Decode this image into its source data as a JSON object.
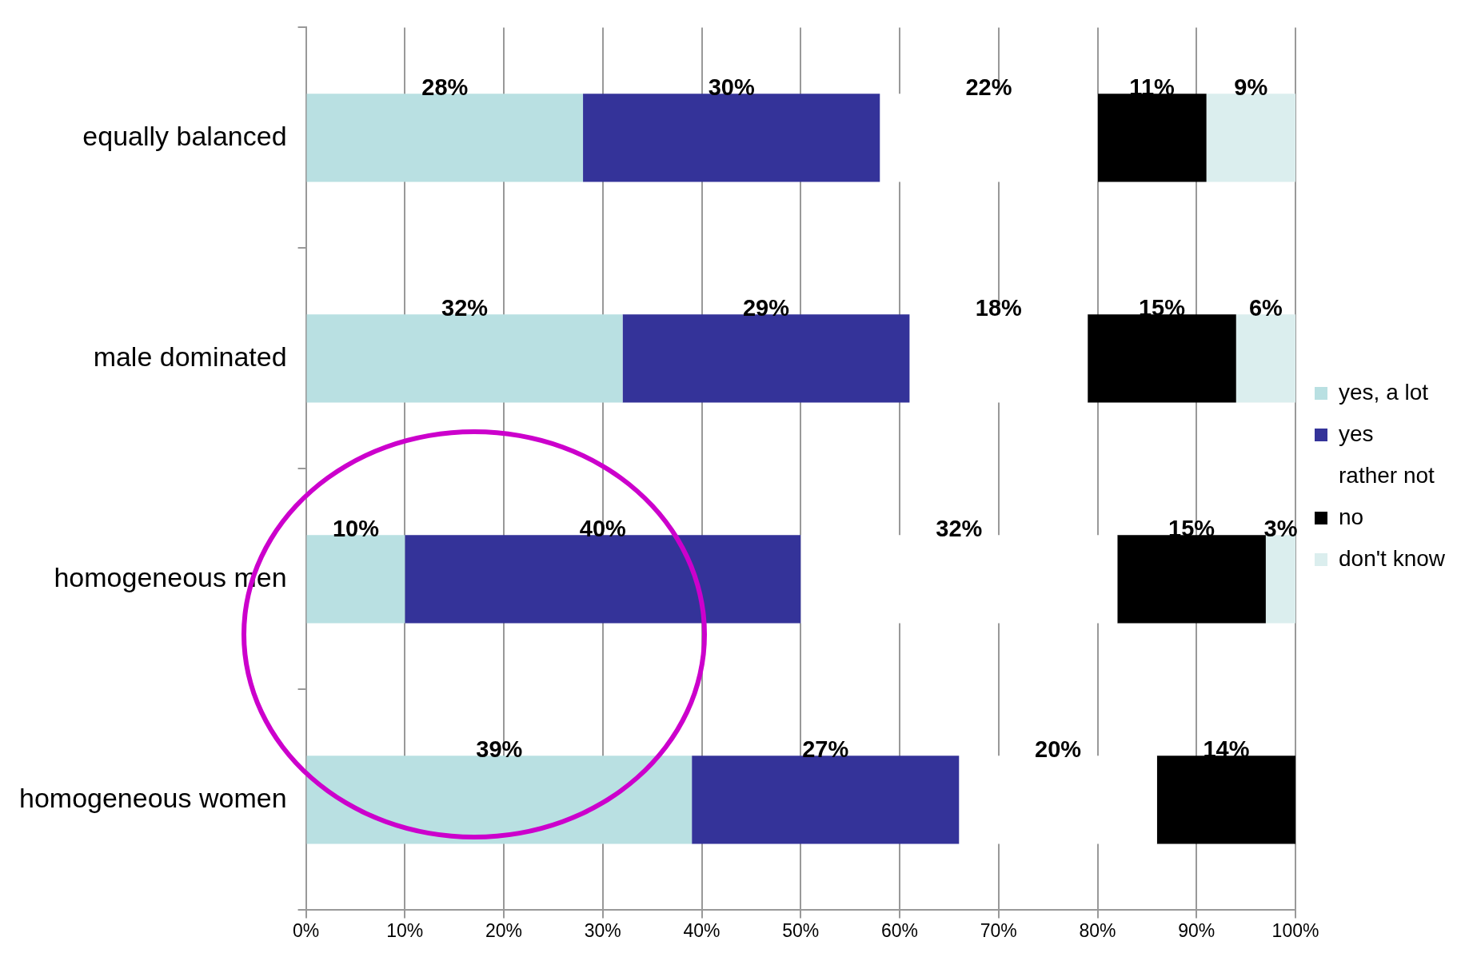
{
  "chart_data": {
    "type": "bar",
    "orientation": "horizontal",
    "stacked": true,
    "categories": [
      "equally balanced",
      "male dominated",
      "homogeneous men",
      "homogeneous women"
    ],
    "series": [
      {
        "name": "yes, a lot",
        "color": "#b9e0e2",
        "values": [
          28,
          32,
          10,
          39
        ],
        "value_labels": [
          "28%",
          "32%",
          "10%",
          "39%"
        ]
      },
      {
        "name": "yes",
        "color": "#343399",
        "values": [
          30,
          29,
          40,
          27
        ],
        "value_labels": [
          "30%",
          "29%",
          "40%",
          "27%"
        ]
      },
      {
        "name": "rather not",
        "color": "#ffffff",
        "values": [
          22,
          18,
          32,
          20
        ],
        "value_labels": [
          "22%",
          "18%",
          "32%",
          "20%"
        ]
      },
      {
        "name": "no",
        "color": "#000000",
        "values": [
          11,
          15,
          15,
          14
        ],
        "value_labels": [
          "11%",
          "15%",
          "15%",
          "14%"
        ]
      },
      {
        "name": "don't know",
        "color": "#dbeeee",
        "values": [
          9,
          6,
          3,
          0
        ],
        "value_labels": [
          "9%",
          "6%",
          "3%",
          null
        ]
      }
    ],
    "xlim": [
      0,
      100
    ],
    "xticks": [
      {
        "value": 0,
        "label": "0%"
      },
      {
        "value": 10,
        "label": "10%"
      },
      {
        "value": 20,
        "label": "20%"
      },
      {
        "value": 30,
        "label": "30%"
      },
      {
        "value": 40,
        "label": "40%"
      },
      {
        "value": 50,
        "label": "50%"
      },
      {
        "value": 60,
        "label": "60%"
      },
      {
        "value": 70,
        "label": "70%"
      },
      {
        "value": 80,
        "label": "80%"
      },
      {
        "value": 90,
        "label": "90%"
      },
      {
        "value": 100,
        "label": "100%"
      }
    ],
    "grid": "x",
    "legend": "right"
  }
}
